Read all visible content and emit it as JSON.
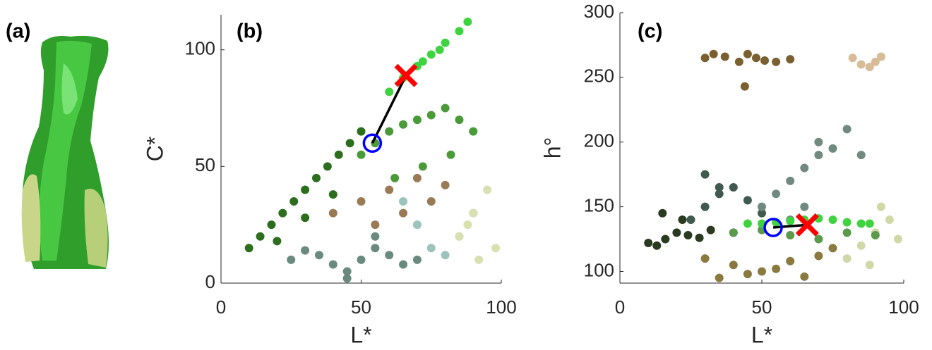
{
  "image_panel": {
    "label": "(a)"
  },
  "chart_data": [
    {
      "type": "scatter",
      "title": "(b)",
      "x_label": "L*",
      "y_label": "C*",
      "xlim": [
        0,
        100
      ],
      "ylim": [
        0,
        115
      ],
      "xticks": [
        0,
        50,
        100
      ],
      "yticks": [
        0,
        50,
        100
      ],
      "series": [
        {
          "color": "#2d6e1e",
          "x": [
            10,
            14,
            18,
            22,
            26,
            30,
            34,
            38,
            42,
            46,
            50,
            20,
            30,
            40
          ],
          "values": [
            15,
            20,
            25,
            30,
            35,
            40,
            45,
            50,
            55,
            60,
            65,
            18,
            28,
            38
          ]
        },
        {
          "color": "#6a8a80",
          "x": [
            25,
            30,
            35,
            40,
            45,
            50,
            55,
            60,
            65,
            70,
            45,
            55
          ],
          "values": [
            10,
            14,
            12,
            8,
            5,
            10,
            15,
            12,
            8,
            10,
            2,
            20
          ]
        },
        {
          "color": "#9a7a55",
          "x": [
            40,
            50,
            60,
            70,
            80,
            55,
            65,
            75
          ],
          "values": [
            30,
            35,
            40,
            45,
            42,
            25,
            30,
            35
          ]
        },
        {
          "color": "#4a9a3a",
          "x": [
            50,
            55,
            60,
            65,
            70,
            75,
            80,
            85,
            90,
            62,
            72,
            82
          ],
          "values": [
            55,
            60,
            65,
            68,
            70,
            72,
            75,
            70,
            65,
            45,
            50,
            55
          ]
        },
        {
          "color": "#9cc4bc",
          "x": [
            75,
            80,
            85,
            90,
            70,
            65
          ],
          "values": [
            15,
            12,
            20,
            30,
            25,
            35
          ]
        },
        {
          "color": "#d8e0b0",
          "x": [
            85,
            90,
            95,
            98,
            92,
            88
          ],
          "values": [
            20,
            30,
            40,
            15,
            10,
            25
          ]
        },
        {
          "color": "#3fd43f",
          "x": [
            60,
            65,
            70,
            75,
            80,
            85,
            88,
            72,
            78
          ],
          "values": [
            82,
            88,
            93,
            98,
            103,
            108,
            112,
            95,
            100
          ]
        }
      ],
      "mean": {
        "x": 54,
        "y": 60,
        "color": "#0000ff"
      },
      "target": {
        "x": 66,
        "y": 89,
        "color": "#ff0000"
      }
    },
    {
      "type": "scatter",
      "title": "(c)",
      "x_label": "L*",
      "y_label": "h°",
      "xlim": [
        0,
        100
      ],
      "ylim": [
        91,
        300
      ],
      "xticks": [
        0,
        50,
        100
      ],
      "yticks": [
        100,
        150,
        200,
        250,
        300
      ],
      "series": [
        {
          "color": "#2a3a20",
          "x": [
            10,
            13,
            16,
            20,
            24,
            28,
            32,
            15,
            22
          ],
          "values": [
            122,
            120,
            125,
            130,
            128,
            126,
            132,
            145,
            140
          ]
        },
        {
          "color": "#405a50",
          "x": [
            25,
            30,
            35,
            40,
            45,
            50,
            30,
            35,
            40
          ],
          "values": [
            140,
            150,
            160,
            165,
            155,
            145,
            175,
            165,
            130
          ]
        },
        {
          "color": "#708a80",
          "x": [
            50,
            55,
            60,
            65,
            70,
            75,
            60,
            65,
            70,
            80,
            85
          ],
          "values": [
            150,
            160,
            170,
            180,
            190,
            195,
            140,
            150,
            200,
            210,
            190
          ]
        },
        {
          "color": "#8a7a40",
          "x": [
            30,
            40,
            50,
            60,
            70,
            35,
            45,
            55,
            65,
            75
          ],
          "values": [
            110,
            105,
            100,
            108,
            112,
            95,
            98,
            102,
            96,
            118
          ]
        },
        {
          "color": "#d0d8a8",
          "x": [
            80,
            85,
            90,
            95,
            98,
            88,
            92
          ],
          "values": [
            110,
            120,
            130,
            140,
            125,
            105,
            150
          ]
        },
        {
          "color": "#5a9a4a",
          "x": [
            40,
            50,
            60,
            70,
            80,
            90
          ],
          "values": [
            130,
            132,
            128,
            125,
            130,
            128
          ]
        },
        {
          "color": "#3fd43f",
          "x": [
            45,
            50,
            55,
            60,
            65,
            70,
            75,
            80,
            85,
            88
          ],
          "values": [
            137,
            137,
            138,
            139,
            140,
            141,
            140,
            138,
            137,
            137
          ]
        },
        {
          "color": "#7a6030",
          "x": [
            30,
            33,
            37,
            42,
            45,
            48,
            51,
            55,
            60,
            44
          ],
          "values": [
            265,
            268,
            266,
            262,
            268,
            265,
            263,
            262,
            264,
            243
          ]
        },
        {
          "color": "#d8bc98",
          "x": [
            82,
            85,
            88,
            90,
            92
          ],
          "values": [
            265,
            260,
            258,
            262,
            266
          ]
        }
      ],
      "mean": {
        "x": 54,
        "y": 134,
        "color": "#0000ff"
      },
      "target": {
        "x": 66,
        "y": 136,
        "color": "#ff0000"
      }
    }
  ]
}
